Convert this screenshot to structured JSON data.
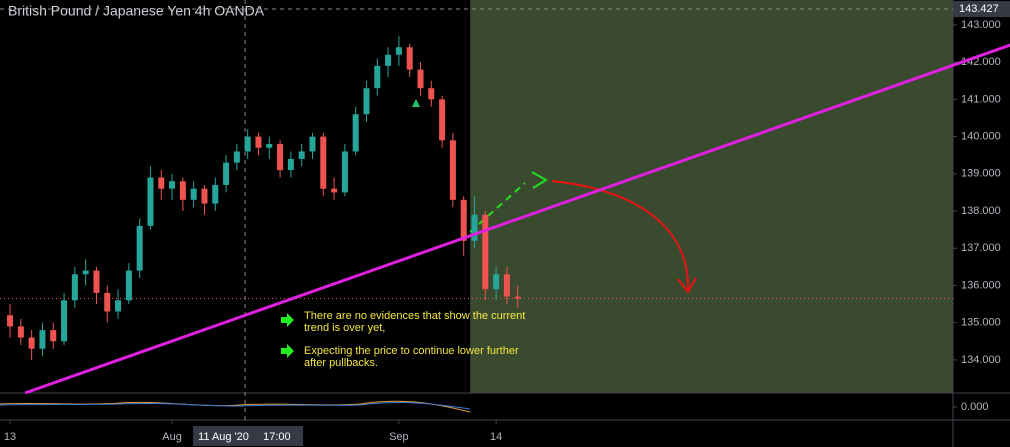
{
  "chart_data": {
    "type": "candlestick",
    "title": "British Pound / Japanese Yen  4h  OANDA",
    "x": [
      0,
      1,
      2,
      3,
      4,
      5,
      6,
      7,
      8,
      9,
      10,
      11,
      12,
      13,
      14,
      15,
      16,
      17,
      18,
      19,
      20,
      21,
      22,
      23,
      24,
      25,
      26,
      27,
      28,
      29,
      30,
      31,
      32,
      33,
      34,
      35,
      36,
      37,
      38,
      39,
      40,
      41,
      42,
      43,
      44,
      45,
      46,
      47
    ],
    "candles": [
      [
        135.2,
        135.5,
        134.6,
        134.9
      ],
      [
        134.9,
        135.1,
        134.4,
        134.6
      ],
      [
        134.6,
        134.8,
        134.0,
        134.3
      ],
      [
        134.3,
        135.0,
        134.1,
        134.8
      ],
      [
        134.8,
        135.0,
        134.3,
        134.5
      ],
      [
        134.5,
        135.8,
        134.4,
        135.6
      ],
      [
        135.6,
        136.5,
        135.4,
        136.3
      ],
      [
        136.3,
        136.7,
        136.0,
        136.4
      ],
      [
        136.4,
        136.5,
        135.5,
        135.8
      ],
      [
        135.8,
        136.0,
        135.0,
        135.3
      ],
      [
        135.3,
        135.9,
        135.1,
        135.6
      ],
      [
        135.6,
        136.6,
        135.5,
        136.4
      ],
      [
        136.4,
        137.8,
        136.2,
        137.6
      ],
      [
        137.6,
        139.2,
        137.5,
        138.9
      ],
      [
        138.9,
        139.1,
        138.3,
        138.6
      ],
      [
        138.6,
        139.0,
        138.3,
        138.8
      ],
      [
        138.8,
        138.9,
        138.0,
        138.3
      ],
      [
        138.3,
        138.8,
        138.1,
        138.6
      ],
      [
        138.6,
        138.7,
        137.9,
        138.2
      ],
      [
        138.2,
        138.9,
        138.0,
        138.7
      ],
      [
        138.7,
        139.5,
        138.5,
        139.3
      ],
      [
        139.3,
        139.8,
        139.1,
        139.6
      ],
      [
        139.6,
        140.2,
        139.4,
        140.0
      ],
      [
        140.0,
        140.1,
        139.5,
        139.7
      ],
      [
        139.7,
        140.0,
        139.4,
        139.8
      ],
      [
        139.8,
        139.9,
        138.9,
        139.1
      ],
      [
        139.1,
        139.6,
        138.9,
        139.4
      ],
      [
        139.4,
        139.8,
        139.2,
        139.6
      ],
      [
        139.6,
        140.1,
        139.4,
        140.0
      ],
      [
        140.0,
        140.1,
        138.4,
        138.6
      ],
      [
        138.6,
        138.9,
        138.3,
        138.5
      ],
      [
        138.5,
        139.8,
        138.4,
        139.6
      ],
      [
        139.6,
        140.8,
        139.5,
        140.6
      ],
      [
        140.6,
        141.5,
        140.4,
        141.3
      ],
      [
        141.3,
        142.1,
        141.1,
        141.9
      ],
      [
        141.9,
        142.4,
        141.6,
        142.2
      ],
      [
        142.2,
        142.7,
        141.9,
        142.4
      ],
      [
        142.4,
        142.5,
        141.6,
        141.8
      ],
      [
        141.8,
        142.0,
        141.1,
        141.3
      ],
      [
        141.3,
        141.5,
        140.8,
        141.0
      ],
      [
        141.0,
        141.1,
        139.7,
        139.9
      ],
      [
        139.9,
        140.1,
        138.1,
        138.3
      ],
      [
        138.3,
        138.4,
        136.8,
        137.2
      ],
      [
        137.2,
        138.4,
        137.0,
        137.9
      ],
      [
        137.9,
        138.0,
        135.6,
        135.9
      ],
      [
        135.9,
        136.5,
        135.6,
        136.3
      ],
      [
        136.3,
        136.5,
        135.5,
        135.7
      ],
      [
        135.7,
        136.0,
        135.4,
        135.65
      ]
    ],
    "up_color": "#26a69a",
    "down_color": "#ef5350",
    "xlim": [
      -0.93,
      87.3
    ],
    "ylim": [
      133.11,
      143.67
    ],
    "xticks": [
      {
        "value": 0,
        "label": "13"
      },
      {
        "value": 15,
        "label": "Aug"
      },
      {
        "value": 36,
        "label": "Sep"
      },
      {
        "value": 45,
        "label": "14"
      }
    ],
    "yticks": [
      {
        "value": 134,
        "label": "134.000"
      },
      {
        "value": 135,
        "label": "135.000"
      },
      {
        "value": 136,
        "label": "136.000"
      },
      {
        "value": 137,
        "label": "137.000"
      },
      {
        "value": 138,
        "label": "138.000"
      },
      {
        "value": 139,
        "label": "139.000"
      },
      {
        "value": 140,
        "label": "140.000"
      },
      {
        "value": 141,
        "label": "141.000"
      },
      {
        "value": 142,
        "label": "142.000"
      },
      {
        "value": 143,
        "label": "143.000"
      }
    ],
    "crosshair_price": {
      "value": 143.427,
      "label": "143.427"
    },
    "crosshair_x": {
      "value": 21.76,
      "date": "11 Aug '20",
      "time": "17:00"
    },
    "price_line": 135.65,
    "trendline": [
      [
        1.39,
        133.11
      ],
      [
        92.6,
        142.46
      ]
    ],
    "trendline_color": "#e020e0",
    "projection_start": 42.6,
    "indicator_yticks": [
      {
        "value": 0,
        "label": "0.000"
      }
    ],
    "notes": [
      [
        "There are no evidences that show the current",
        "trend is over yet,"
      ],
      [
        "Expecting the price to continue lower further",
        "after pullbacks."
      ]
    ]
  }
}
